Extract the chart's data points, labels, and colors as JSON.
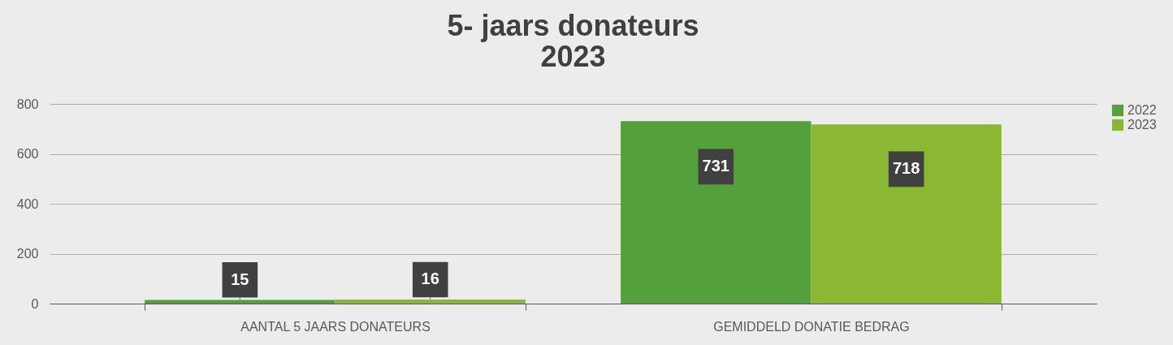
{
  "chart_data": {
    "type": "bar",
    "title": [
      "5- jaars donateurs",
      "2023"
    ],
    "categories": [
      "AANTAL 5 JAARS DONATEURS",
      "GEMIDDELD DONATIE BEDRAG"
    ],
    "series": [
      {
        "name": "2022",
        "color": "#54a03a",
        "values": [
          15,
          731
        ]
      },
      {
        "name": "2023",
        "color": "#8ab833",
        "values": [
          16,
          718
        ]
      }
    ],
    "ylim": [
      0,
      800
    ],
    "yticks": [
      0,
      200,
      400,
      600,
      800
    ],
    "grid": "y",
    "legend": "right",
    "data_labels": true
  }
}
